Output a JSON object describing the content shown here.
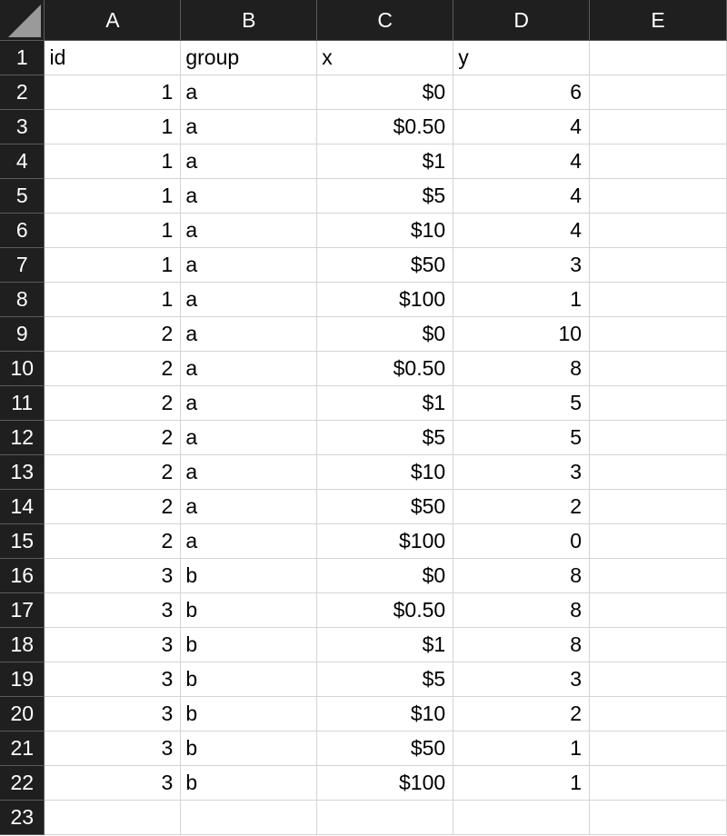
{
  "columns": [
    "A",
    "B",
    "C",
    "D",
    "E"
  ],
  "row_numbers": [
    "1",
    "2",
    "3",
    "4",
    "5",
    "6",
    "7",
    "8",
    "9",
    "10",
    "11",
    "12",
    "13",
    "14",
    "15",
    "16",
    "17",
    "18",
    "19",
    "20",
    "21",
    "22",
    "23"
  ],
  "header": {
    "id": "id",
    "group": "group",
    "x": "x",
    "y": "y",
    "e": ""
  },
  "rows": [
    {
      "id": "1",
      "group": "a",
      "x": "$0",
      "y": "6"
    },
    {
      "id": "1",
      "group": "a",
      "x": "$0.50",
      "y": "4"
    },
    {
      "id": "1",
      "group": "a",
      "x": "$1",
      "y": "4"
    },
    {
      "id": "1",
      "group": "a",
      "x": "$5",
      "y": "4"
    },
    {
      "id": "1",
      "group": "a",
      "x": "$10",
      "y": "4"
    },
    {
      "id": "1",
      "group": "a",
      "x": "$50",
      "y": "3"
    },
    {
      "id": "1",
      "group": "a",
      "x": "$100",
      "y": "1"
    },
    {
      "id": "2",
      "group": "a",
      "x": "$0",
      "y": "10"
    },
    {
      "id": "2",
      "group": "a",
      "x": "$0.50",
      "y": "8"
    },
    {
      "id": "2",
      "group": "a",
      "x": "$1",
      "y": "5"
    },
    {
      "id": "2",
      "group": "a",
      "x": "$5",
      "y": "5"
    },
    {
      "id": "2",
      "group": "a",
      "x": "$10",
      "y": "3"
    },
    {
      "id": "2",
      "group": "a",
      "x": "$50",
      "y": "2"
    },
    {
      "id": "2",
      "group": "a",
      "x": "$100",
      "y": "0"
    },
    {
      "id": "3",
      "group": "b",
      "x": "$0",
      "y": "8"
    },
    {
      "id": "3",
      "group": "b",
      "x": "$0.50",
      "y": "8"
    },
    {
      "id": "3",
      "group": "b",
      "x": "$1",
      "y": "8"
    },
    {
      "id": "3",
      "group": "b",
      "x": "$5",
      "y": "3"
    },
    {
      "id": "3",
      "group": "b",
      "x": "$10",
      "y": "2"
    },
    {
      "id": "3",
      "group": "b",
      "x": "$50",
      "y": "1"
    },
    {
      "id": "3",
      "group": "b",
      "x": "$100",
      "y": "1"
    },
    {
      "id": "",
      "group": "",
      "x": "",
      "y": ""
    }
  ]
}
